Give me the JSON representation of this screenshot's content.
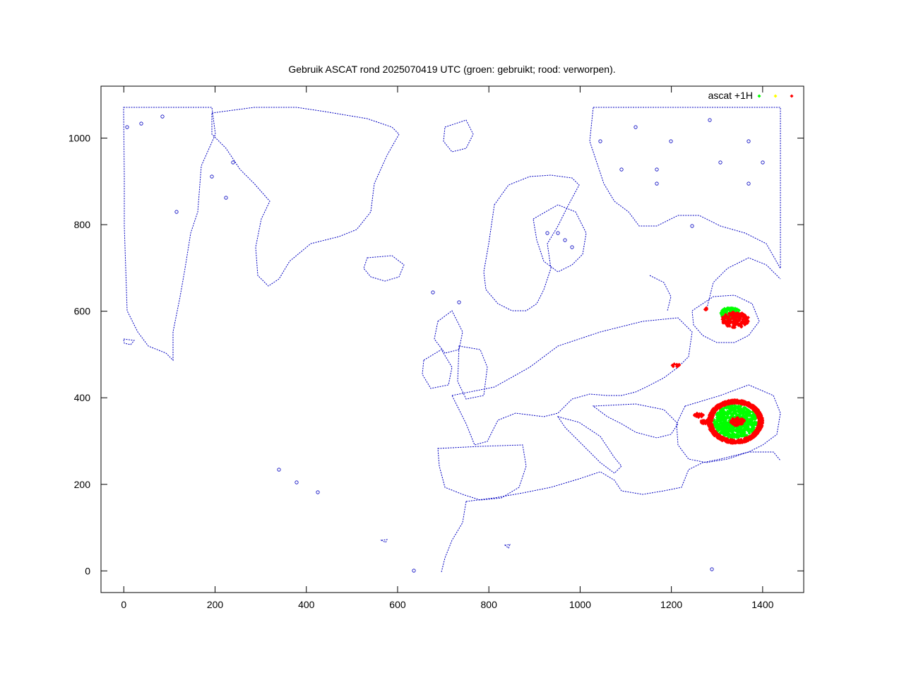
{
  "chart_data": {
    "type": "scatter",
    "title": "Gebruik ASCAT rond 2025070419 UTC (groen: gebruikt; rood: verworpen).",
    "xlabel": "",
    "ylabel": "",
    "xlim": [
      -50,
      1490
    ],
    "ylim": [
      -50,
      1120
    ],
    "x_ticks": [
      0,
      200,
      400,
      600,
      800,
      1000,
      1200,
      1400
    ],
    "y_ticks": [
      0,
      200,
      400,
      600,
      800,
      1000
    ],
    "grid": false,
    "legend": {
      "placement": "top-right",
      "label": "ascat +1H",
      "colors": [
        "#00ff00",
        "#ffff00",
        "#ff0000"
      ]
    },
    "coastline_color": "#0000c0",
    "series": [
      {
        "color": "#00ff00",
        "regions": [
          {
            "center": [
              1330,
              595
            ],
            "rx": 22,
            "ry": 14
          },
          {
            "center": [
              1340,
              345
            ],
            "rx": 48,
            "ry": 38
          }
        ]
      },
      {
        "color": "#ff0000",
        "regions": [
          {
            "center": [
              1340,
              580
            ],
            "rx": 30,
            "ry": 18
          },
          {
            "center": [
              1340,
              345
            ],
            "rx": 60,
            "ry": 50
          },
          {
            "center": [
              1345,
              345
            ],
            "rx": 15,
            "ry": 10
          },
          {
            "center": [
              1210,
              475
            ],
            "rx": 8,
            "ry": 4
          },
          {
            "center": [
              1260,
              360
            ],
            "rx": 10,
            "ry": 5
          },
          {
            "center": [
              1275,
              345
            ],
            "rx": 12,
            "ry": 5
          },
          {
            "center": [
              1275,
              605
            ],
            "rx": 3,
            "ry": 3
          }
        ]
      }
    ]
  }
}
